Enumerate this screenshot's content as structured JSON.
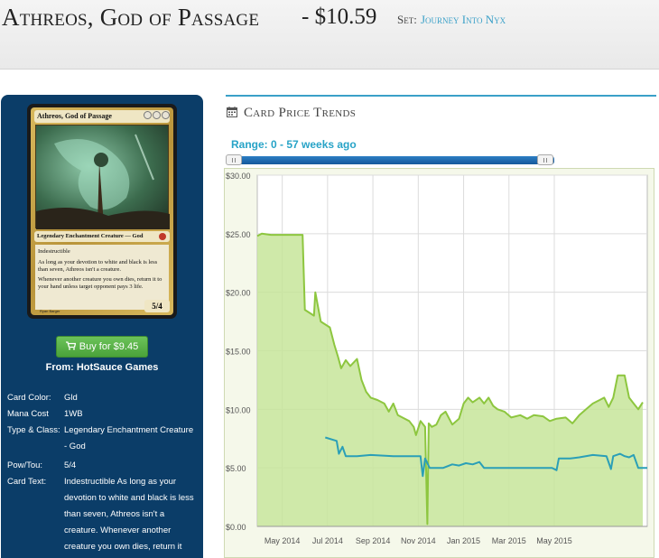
{
  "header": {
    "card_name": "Athreos, God of Passage",
    "price": "- $10.59",
    "set_label": "Set:",
    "set_name": "Journey Into Nyx"
  },
  "card_image": {
    "title": "Athreos, God of Passage",
    "type_line": "Legendary Enchantment Creature — God",
    "text_1": "Indestructible",
    "text_2": "As long as your devotion to white and black is less than seven, Athreos isn't a creature.",
    "text_3": "Whenever another creature you own dies, return it to your hand unless target opponent pays 3 life.",
    "power_toughness": "5/4",
    "artist": "Ryan Barger"
  },
  "buy": {
    "label": "Buy for $9.45",
    "icon": "cart-icon",
    "from": "From: HotSauce Games",
    "color": "#5cb85c"
  },
  "details": [
    {
      "label": "Card Color:",
      "value": "Gld"
    },
    {
      "label": "Mana Cost",
      "value": "1WB"
    },
    {
      "label": "Type & Class:",
      "value": "Legendary Enchantment Creature - God"
    },
    {
      "label": "Pow/Tou:",
      "value": "5/4"
    },
    {
      "label": "Card Text:",
      "value": "Indestructible As long as your devotion to white and black is less than seven, Athreos isn't a creature. Whenever another creature you own dies, return it"
    }
  ],
  "trends": {
    "title": "Card Price Trends",
    "icon": "calendar-icon",
    "range_label": "Range: 0 - 57 weeks ago"
  },
  "chart_data": {
    "type": "line",
    "ylim": [
      0,
      30
    ],
    "y_ticks": [
      "$0.00",
      "$5.00",
      "$10.00",
      "$15.00",
      "$20.00",
      "$25.00",
      "$30.00"
    ],
    "x_ticks": [
      "May 2014",
      "Jul 2014",
      "Sep 2014",
      "Nov 2014",
      "Jan 2015",
      "Mar 2015",
      "May 2015"
    ],
    "grid": true,
    "series": [
      {
        "color": "#8dc63f",
        "fill": "#c7e59a",
        "points": [
          [
            0.0,
            24.8
          ],
          [
            0.1,
            25.0
          ],
          [
            0.3,
            24.9
          ],
          [
            1.0,
            24.9
          ],
          [
            1.05,
            18.5
          ],
          [
            1.25,
            18.0
          ],
          [
            1.28,
            20.0
          ],
          [
            1.4,
            17.5
          ],
          [
            1.6,
            17.0
          ],
          [
            1.7,
            15.5
          ],
          [
            1.78,
            14.5
          ],
          [
            1.85,
            13.5
          ],
          [
            1.95,
            14.2
          ],
          [
            2.05,
            13.7
          ],
          [
            2.2,
            14.3
          ],
          [
            2.3,
            12.5
          ],
          [
            2.4,
            11.5
          ],
          [
            2.5,
            11.0
          ],
          [
            2.65,
            10.8
          ],
          [
            2.8,
            10.5
          ],
          [
            2.9,
            9.8
          ],
          [
            3.0,
            10.5
          ],
          [
            3.1,
            9.5
          ],
          [
            3.2,
            9.3
          ],
          [
            3.35,
            9.0
          ],
          [
            3.45,
            8.5
          ],
          [
            3.5,
            7.8
          ],
          [
            3.6,
            9.0
          ],
          [
            3.7,
            8.5
          ],
          [
            3.75,
            0.2
          ],
          [
            3.78,
            8.8
          ],
          [
            3.85,
            8.5
          ],
          [
            3.95,
            8.7
          ],
          [
            4.05,
            9.5
          ],
          [
            4.15,
            9.8
          ],
          [
            4.3,
            8.7
          ],
          [
            4.45,
            9.2
          ],
          [
            4.55,
            10.5
          ],
          [
            4.65,
            11.0
          ],
          [
            4.75,
            10.6
          ],
          [
            4.9,
            11.0
          ],
          [
            5.0,
            10.5
          ],
          [
            5.1,
            11.0
          ],
          [
            5.2,
            10.3
          ],
          [
            5.3,
            10.0
          ],
          [
            5.45,
            9.8
          ],
          [
            5.6,
            9.3
          ],
          [
            5.8,
            9.5
          ],
          [
            5.95,
            9.2
          ],
          [
            6.1,
            9.5
          ],
          [
            6.3,
            9.4
          ],
          [
            6.45,
            9.0
          ],
          [
            6.6,
            9.2
          ],
          [
            6.8,
            9.3
          ],
          [
            6.95,
            8.8
          ],
          [
            7.1,
            9.5
          ],
          [
            7.25,
            10.0
          ],
          [
            7.4,
            10.5
          ],
          [
            7.55,
            10.8
          ],
          [
            7.65,
            11.0
          ],
          [
            7.75,
            10.2
          ],
          [
            7.85,
            11.0
          ],
          [
            7.95,
            12.9
          ],
          [
            8.1,
            12.9
          ],
          [
            8.2,
            11.0
          ],
          [
            8.3,
            10.5
          ],
          [
            8.4,
            10.0
          ],
          [
            8.5,
            10.6
          ]
        ]
      },
      {
        "color": "#2a9fb7",
        "points": [
          [
            1.5,
            7.6
          ],
          [
            1.75,
            7.3
          ],
          [
            1.8,
            6.2
          ],
          [
            1.88,
            6.8
          ],
          [
            1.95,
            6.0
          ],
          [
            2.2,
            6.0
          ],
          [
            2.5,
            6.1
          ],
          [
            3.0,
            6.0
          ],
          [
            3.6,
            6.0
          ],
          [
            3.65,
            4.3
          ],
          [
            3.7,
            5.8
          ],
          [
            3.8,
            5.0
          ],
          [
            4.1,
            5.0
          ],
          [
            4.3,
            5.3
          ],
          [
            4.45,
            5.2
          ],
          [
            4.6,
            5.4
          ],
          [
            4.75,
            5.3
          ],
          [
            4.9,
            5.5
          ],
          [
            5.0,
            5.0
          ],
          [
            5.5,
            5.0
          ],
          [
            6.0,
            5.0
          ],
          [
            6.5,
            5.0
          ],
          [
            6.6,
            4.8
          ],
          [
            6.65,
            5.8
          ],
          [
            6.9,
            5.8
          ],
          [
            7.1,
            5.9
          ],
          [
            7.4,
            6.1
          ],
          [
            7.7,
            6.0
          ],
          [
            7.8,
            4.9
          ],
          [
            7.85,
            6.0
          ],
          [
            8.0,
            6.2
          ],
          [
            8.1,
            6.0
          ],
          [
            8.2,
            5.9
          ],
          [
            8.3,
            6.1
          ],
          [
            8.4,
            5.0
          ],
          [
            8.6,
            5.0
          ]
        ]
      }
    ]
  }
}
